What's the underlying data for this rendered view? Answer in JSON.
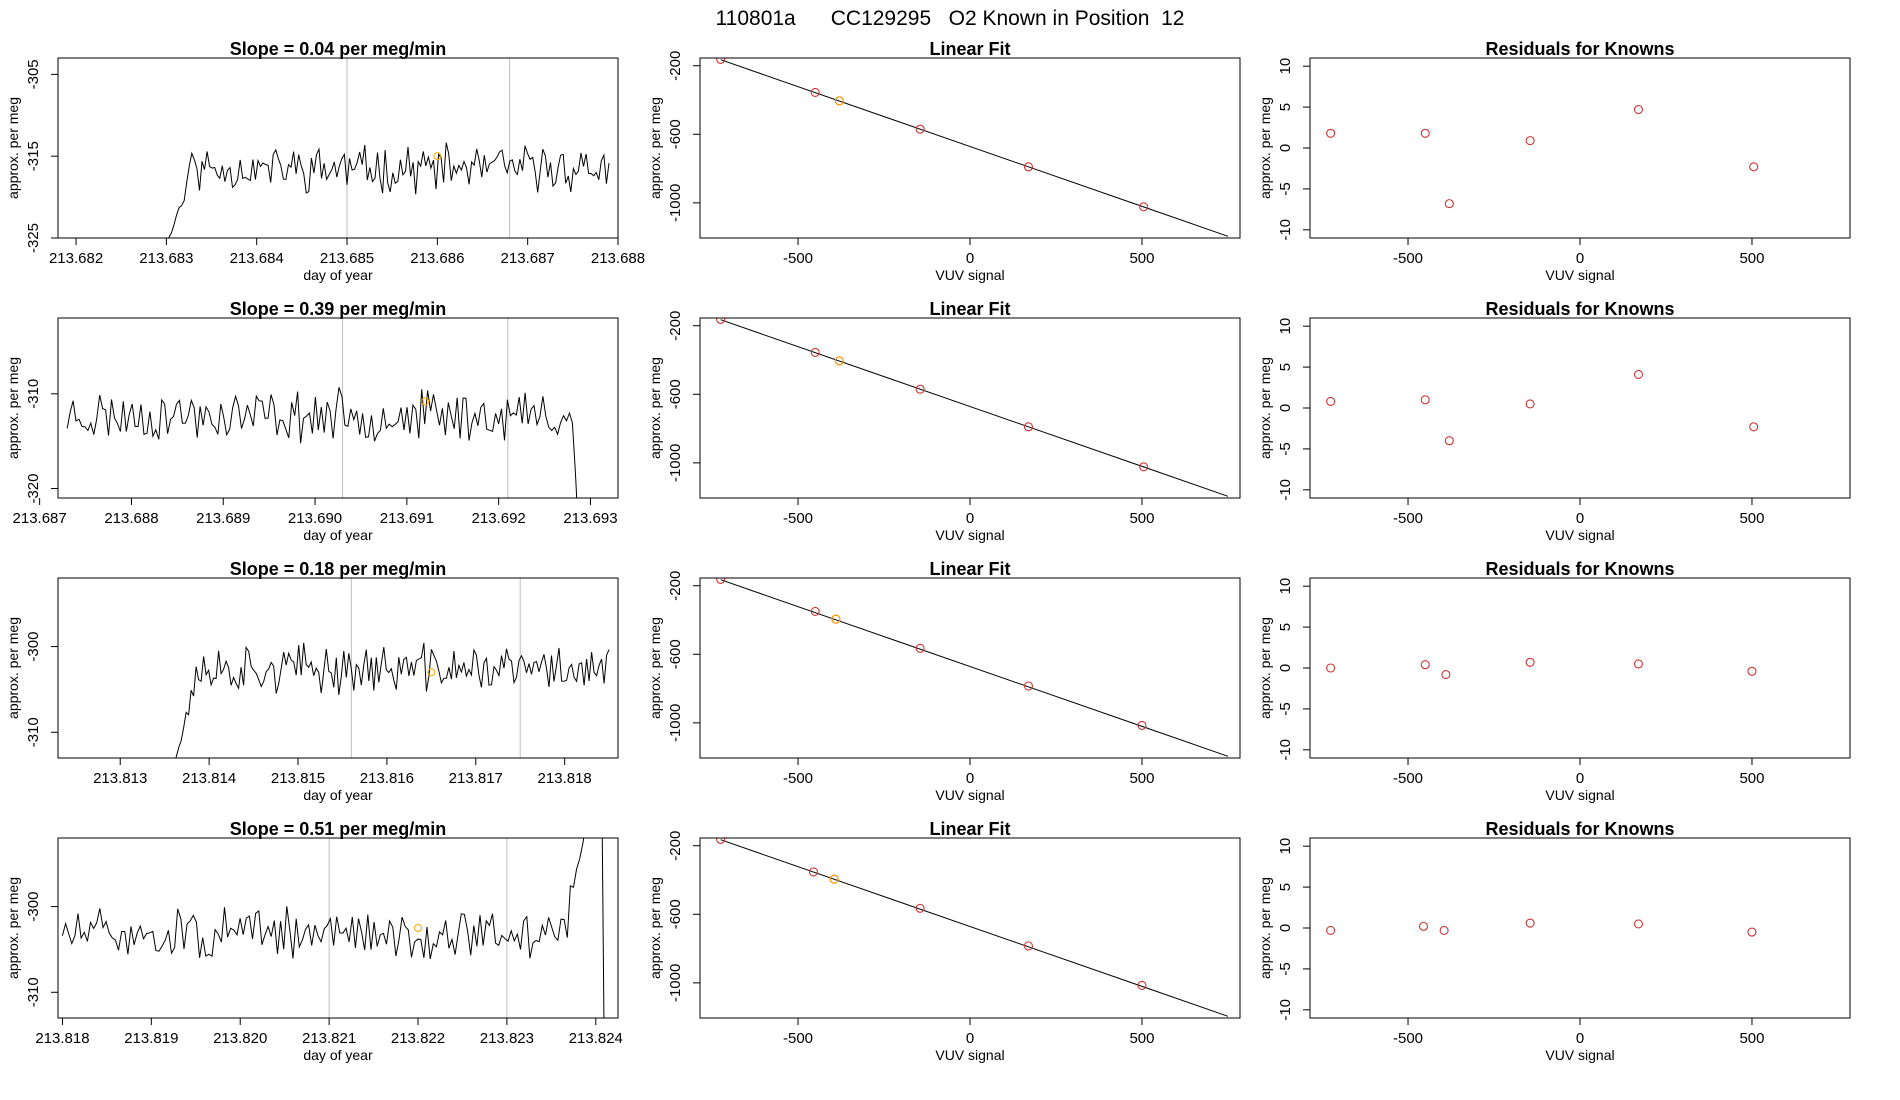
{
  "figure_title": "110801a      CC129295   O2 Known in Position  12",
  "colors": {
    "trace": "#000000",
    "known": "#FFA500",
    "point": "#CD3333",
    "vline": "#BEBEBE",
    "frame": "#000000"
  },
  "chart_data": [
    {
      "panel": "timeseries",
      "row": 1,
      "type": "line",
      "title": "Slope =  0.04  per meg/min",
      "xlabel": "day of year",
      "ylabel": "approx. per meg",
      "xlim": [
        213.6818,
        213.688
      ],
      "ylim": [
        -325,
        -303
      ],
      "xticks": [
        "213.682",
        "213.683",
        "213.684",
        "213.685",
        "213.686",
        "213.687",
        "213.688"
      ],
      "yticks": [
        "-305",
        "-315",
        "-325"
      ],
      "vlines": [
        213.685,
        213.6868
      ],
      "known_point": {
        "x": 213.686,
        "y": -315
      },
      "series": {
        "x_start": 213.683,
        "x_end": 213.6879,
        "base": -316.5,
        "rise_from": -326,
        "rise_len": 10,
        "amp": 2.2,
        "seed": 11,
        "end_mode": "flat"
      }
    },
    {
      "panel": "linearfit",
      "row": 1,
      "type": "scatter",
      "title": "Linear Fit",
      "xlabel": "VUV signal",
      "ylabel": "approx. per meg",
      "xlim": [
        -785,
        785
      ],
      "ylim": [
        -1205,
        -155
      ],
      "xticks": [
        "-500",
        "0",
        "500"
      ],
      "yticks": [
        "-200",
        "-600",
        "-1000"
      ],
      "line": {
        "x1": -725,
        "y1": -165,
        "x2": 750,
        "y2": -1195
      },
      "points": [
        {
          "x": -725,
          "y": -163
        },
        {
          "x": -450,
          "y": -356
        },
        {
          "x": -380,
          "y": -405
        },
        {
          "x": -145,
          "y": -570
        },
        {
          "x": 170,
          "y": -790
        },
        {
          "x": 505,
          "y": -1023
        }
      ],
      "known_index": 2
    },
    {
      "panel": "residuals",
      "row": 1,
      "type": "scatter",
      "title": "Residuals for Knowns",
      "xlabel": "VUV signal",
      "ylabel": "approx. per meg",
      "xlim": [
        -785,
        785
      ],
      "ylim": [
        -11,
        11
      ],
      "xticks": [
        "-500",
        "0",
        "500"
      ],
      "yticks": [
        "10",
        "5",
        "0",
        "-5",
        "-10"
      ],
      "points": [
        {
          "x": -725,
          "y": 1.8
        },
        {
          "x": -450,
          "y": 1.8
        },
        {
          "x": -380,
          "y": -6.8
        },
        {
          "x": -145,
          "y": 0.9
        },
        {
          "x": 170,
          "y": 4.7
        },
        {
          "x": 505,
          "y": -2.3
        }
      ]
    },
    {
      "panel": "timeseries",
      "row": 2,
      "type": "line",
      "title": "Slope =  0.39  per meg/min",
      "xlabel": "day of year",
      "ylabel": "approx. per meg",
      "xlim": [
        213.6872,
        213.6933
      ],
      "ylim": [
        -321,
        -302
      ],
      "xticks": [
        "213.687",
        "213.688",
        "213.689",
        "213.690",
        "213.691",
        "213.692",
        "213.693"
      ],
      "yticks": [
        "-310",
        "-320"
      ],
      "vlines": [
        213.6903,
        213.6921
      ],
      "known_point": {
        "x": 213.6912,
        "y": -310.8
      },
      "series": {
        "x_start": 213.6873,
        "x_end": 213.6929,
        "base": -312.3,
        "rise_from": -312.3,
        "rise_len": 0,
        "amp": 2.1,
        "seed": 23,
        "end_mode": "drop"
      }
    },
    {
      "panel": "linearfit",
      "row": 2,
      "type": "scatter",
      "title": "Linear Fit",
      "xlabel": "VUV signal",
      "ylabel": "approx. per meg",
      "xlim": [
        -785,
        785
      ],
      "ylim": [
        -1205,
        -155
      ],
      "xticks": [
        "-500",
        "0",
        "500"
      ],
      "yticks": [
        "-200",
        "-600",
        "-1000"
      ],
      "line": {
        "x1": -725,
        "y1": -165,
        "x2": 750,
        "y2": -1195
      },
      "points": [
        {
          "x": -725,
          "y": -163
        },
        {
          "x": -450,
          "y": -356
        },
        {
          "x": -380,
          "y": -405
        },
        {
          "x": -145,
          "y": -570
        },
        {
          "x": 170,
          "y": -790
        },
        {
          "x": 505,
          "y": -1023
        }
      ],
      "known_index": 2
    },
    {
      "panel": "residuals",
      "row": 2,
      "type": "scatter",
      "title": "Residuals for Knowns",
      "xlabel": "VUV signal",
      "ylabel": "approx. per meg",
      "xlim": [
        -785,
        785
      ],
      "ylim": [
        -11,
        11
      ],
      "xticks": [
        "-500",
        "0",
        "500"
      ],
      "yticks": [
        "10",
        "5",
        "0",
        "-5",
        "-10"
      ],
      "points": [
        {
          "x": -725,
          "y": 0.8
        },
        {
          "x": -450,
          "y": 1.0
        },
        {
          "x": -380,
          "y": -4.0
        },
        {
          "x": -145,
          "y": 0.5
        },
        {
          "x": 170,
          "y": 4.1
        },
        {
          "x": 505,
          "y": -2.3
        }
      ]
    },
    {
      "panel": "timeseries",
      "row": 3,
      "type": "line",
      "title": "Slope =  0.18  per meg/min",
      "xlabel": "day of year",
      "ylabel": "approx. per meg",
      "xlim": [
        213.8123,
        213.8186
      ],
      "ylim": [
        -313,
        -292
      ],
      "xticks": [
        "213.813",
        "213.814",
        "213.815",
        "213.816",
        "213.817",
        "213.818"
      ],
      "yticks": [
        "-300",
        "-310"
      ],
      "vlines": [
        213.8156,
        213.8175
      ],
      "known_point": {
        "x": 213.8165,
        "y": -303
      },
      "series": {
        "x_start": 213.8136,
        "x_end": 213.8185,
        "base": -302.6,
        "rise_from": -314,
        "rise_len": 10,
        "amp": 2.2,
        "seed": 37,
        "end_mode": "flat"
      }
    },
    {
      "panel": "linearfit",
      "row": 3,
      "type": "scatter",
      "title": "Linear Fit",
      "xlabel": "VUV signal",
      "ylabel": "approx. per meg",
      "xlim": [
        -785,
        785
      ],
      "ylim": [
        -1205,
        -155
      ],
      "xticks": [
        "-500",
        "0",
        "500"
      ],
      "yticks": [
        "-200",
        "-600",
        "-1000"
      ],
      "line": {
        "x1": -725,
        "y1": -165,
        "x2": 750,
        "y2": -1195
      },
      "points": [
        {
          "x": -725,
          "y": -163
        },
        {
          "x": -450,
          "y": -350
        },
        {
          "x": -390,
          "y": -395
        },
        {
          "x": -145,
          "y": -565
        },
        {
          "x": 170,
          "y": -785
        },
        {
          "x": 500,
          "y": -1015
        }
      ],
      "known_index": 2
    },
    {
      "panel": "residuals",
      "row": 3,
      "type": "scatter",
      "title": "Residuals for Knowns",
      "xlabel": "VUV signal",
      "ylabel": "approx. per meg",
      "xlim": [
        -785,
        785
      ],
      "ylim": [
        -11,
        11
      ],
      "xticks": [
        "-500",
        "0",
        "500"
      ],
      "yticks": [
        "10",
        "5",
        "0",
        "-5",
        "-10"
      ],
      "points": [
        {
          "x": -725,
          "y": 0.0
        },
        {
          "x": -450,
          "y": 0.4
        },
        {
          "x": -390,
          "y": -0.8
        },
        {
          "x": -145,
          "y": 0.7
        },
        {
          "x": 170,
          "y": 0.5
        },
        {
          "x": 500,
          "y": -0.4
        }
      ]
    },
    {
      "panel": "timeseries",
      "row": 4,
      "type": "line",
      "title": "Slope =  0.51  per meg/min",
      "xlabel": "day of year",
      "ylabel": "approx. per meg",
      "xlim": [
        213.81795,
        213.82425
      ],
      "ylim": [
        -313,
        -292
      ],
      "xticks": [
        "213.818",
        "213.819",
        "213.820",
        "213.821",
        "213.822",
        "213.823",
        "213.824"
      ],
      "yticks": [
        "-300",
        "-310"
      ],
      "vlines": [
        213.821,
        213.823
      ],
      "known_point": {
        "x": 213.822,
        "y": -302.5
      },
      "series": {
        "x_start": 213.818,
        "x_end": 213.8241,
        "base": -303.2,
        "rise_from": -303.2,
        "rise_len": 0,
        "amp": 2.3,
        "seed": 51,
        "end_mode": "spike"
      }
    },
    {
      "panel": "linearfit",
      "row": 4,
      "type": "scatter",
      "title": "Linear Fit",
      "xlabel": "VUV signal",
      "ylabel": "approx. per meg",
      "xlim": [
        -785,
        785
      ],
      "ylim": [
        -1205,
        -155
      ],
      "xticks": [
        "-500",
        "0",
        "500"
      ],
      "yticks": [
        "-200",
        "-600",
        "-1000"
      ],
      "line": {
        "x1": -725,
        "y1": -165,
        "x2": 750,
        "y2": -1195
      },
      "points": [
        {
          "x": -725,
          "y": -163
        },
        {
          "x": -455,
          "y": -353
        },
        {
          "x": -395,
          "y": -395
        },
        {
          "x": -145,
          "y": -565
        },
        {
          "x": 170,
          "y": -785
        },
        {
          "x": 500,
          "y": -1015
        }
      ],
      "known_index": 2
    },
    {
      "panel": "residuals",
      "row": 4,
      "type": "scatter",
      "title": "Residuals for Knowns",
      "xlabel": "VUV signal",
      "ylabel": "approx. per meg",
      "xlim": [
        -785,
        785
      ],
      "ylim": [
        -11,
        11
      ],
      "xticks": [
        "-500",
        "0",
        "500"
      ],
      "yticks": [
        "10",
        "5",
        "0",
        "-5",
        "-10"
      ],
      "points": [
        {
          "x": -725,
          "y": -0.3
        },
        {
          "x": -455,
          "y": 0.2
        },
        {
          "x": -395,
          "y": -0.3
        },
        {
          "x": -145,
          "y": 0.6
        },
        {
          "x": 170,
          "y": 0.5
        },
        {
          "x": 500,
          "y": -0.5
        }
      ]
    }
  ]
}
